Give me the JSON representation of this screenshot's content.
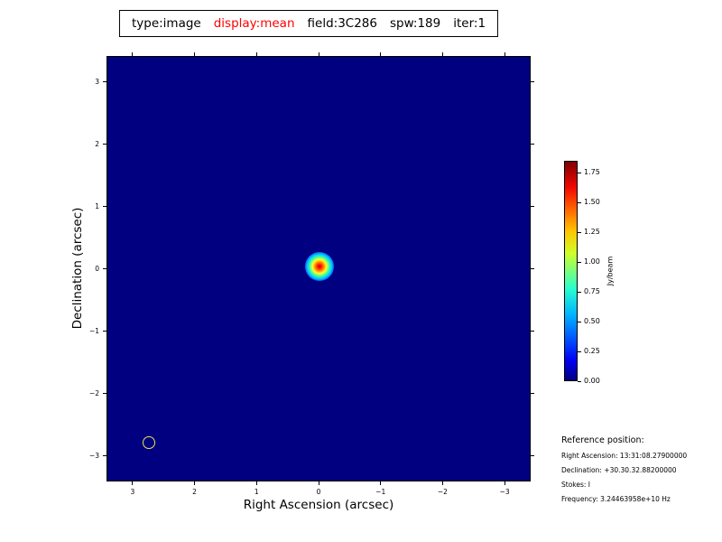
{
  "header": {
    "parts": [
      {
        "text": "type:image",
        "color": "#000000"
      },
      {
        "text": "display:mean",
        "color": "#ff0000"
      },
      {
        "text": "field:3C286",
        "color": "#000000"
      },
      {
        "text": "spw:189",
        "color": "#000000"
      },
      {
        "text": "iter:1",
        "color": "#000000"
      }
    ]
  },
  "chart_data": {
    "type": "heatmap",
    "title": "type:image display:mean field:3C286 spw:189 iter:1",
    "xlabel": "Right Ascension (arcsec)",
    "ylabel": "Declination (arcsec)",
    "xlim": [
      3.42,
      -3.42
    ],
    "ylim": [
      -3.42,
      3.42
    ],
    "x_ticks": [
      {
        "v": 3,
        "label": "3"
      },
      {
        "v": 2,
        "label": "2"
      },
      {
        "v": 1,
        "label": "1"
      },
      {
        "v": 0,
        "label": "0"
      },
      {
        "v": -1,
        "label": "−1"
      },
      {
        "v": -2,
        "label": "−2"
      },
      {
        "v": -3,
        "label": "−3"
      }
    ],
    "y_ticks": [
      {
        "v": -3,
        "label": "−3"
      },
      {
        "v": -2,
        "label": "−2"
      },
      {
        "v": -1,
        "label": "−1"
      },
      {
        "v": 0,
        "label": "0"
      },
      {
        "v": 1,
        "label": "1"
      },
      {
        "v": 2,
        "label": "2"
      },
      {
        "v": 3,
        "label": "3"
      }
    ],
    "background_value": 0.0,
    "background_color": "#000080",
    "source": {
      "x": 0.0,
      "y": 0.05,
      "peak_jy_per_beam": 1.83,
      "description": "unresolved point source (3C286) at field center, jet-colormap gaussian"
    },
    "beam": {
      "x": 2.75,
      "y": -2.78,
      "radius_arcsec": 0.1,
      "outline_color": "#e8e850"
    },
    "colorbar": {
      "label": "Jy/beam",
      "vmin": 0.0,
      "vmax": 1.85,
      "colormap": "jet",
      "ticks": [
        {
          "v": 0.0,
          "label": "0.00"
        },
        {
          "v": 0.25,
          "label": "0.25"
        },
        {
          "v": 0.5,
          "label": "0.50"
        },
        {
          "v": 0.75,
          "label": "0.75"
        },
        {
          "v": 1.0,
          "label": "1.00"
        },
        {
          "v": 1.25,
          "label": "1.25"
        },
        {
          "v": 1.5,
          "label": "1.50"
        },
        {
          "v": 1.75,
          "label": "1.75"
        }
      ]
    }
  },
  "reference_info": {
    "heading": "Reference position:",
    "lines": [
      "Right Ascension: 13:31:08.27900000",
      "Declination: +30.30.32.88200000",
      "Stokes: I",
      "Frequency: 3.24463958e+10 Hz"
    ]
  }
}
